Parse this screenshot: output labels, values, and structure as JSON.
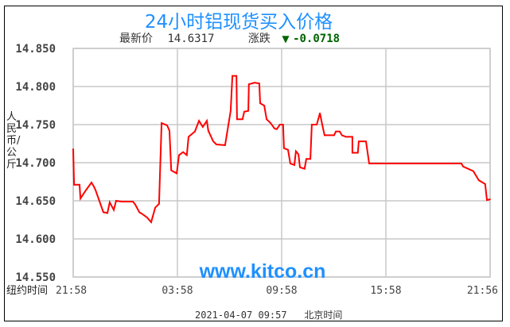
{
  "header": {
    "title": "24小时铝现货买入价格",
    "latest_label": "最新价",
    "latest_value": "14.6317",
    "change_label": "涨跌",
    "change_value": "-0.0718",
    "change_direction": "down",
    "change_color": "#006400"
  },
  "watermark": "www.kitco.cn",
  "footer": {
    "timestamp": "2021-04-07 09:57",
    "timezone_label": "北京时间"
  },
  "chart_data": {
    "type": "line",
    "title": "24小时铝现货买入价格",
    "ylabel": "人民币/公斤",
    "xlabel": "纽约时间",
    "ylim": [
      14.55,
      14.85
    ],
    "y_ticks": [
      "14.850",
      "14.800",
      "14.750",
      "14.700",
      "14.650",
      "14.600",
      "14.550"
    ],
    "x_ticks": [
      "21:58",
      "03:58",
      "09:58",
      "15:58",
      "21:56"
    ],
    "grid": true,
    "line_color": "#ff0000",
    "x": [
      "21:58",
      "22:01",
      "22:20",
      "22:23",
      "22:42",
      "23:01",
      "23:09",
      "23:15",
      "23:42",
      "23:56",
      "00:04",
      "00:18",
      "00:26",
      "00:45",
      "01:24",
      "01:32",
      "01:46",
      "01:59",
      "02:13",
      "02:27",
      "02:41",
      "02:54",
      "03:03",
      "03:22",
      "03:30",
      "03:36",
      "03:55",
      "04:03",
      "04:17",
      "04:30",
      "04:36",
      "04:58",
      "05:12",
      "05:25",
      "05:39",
      "05:44",
      "06:01",
      "06:12",
      "06:42",
      "07:01",
      "07:07",
      "07:21",
      "07:23",
      "07:42",
      "07:48",
      "08:02",
      "08:04",
      "08:24",
      "08:40",
      "08:43",
      "08:57",
      "09:05",
      "09:19",
      "09:32",
      "09:40",
      "09:51",
      "10:02",
      "10:05",
      "10:19",
      "10:27",
      "10:41",
      "10:46",
      "10:55",
      "11:00",
      "11:16",
      "11:22",
      "11:36",
      "11:41",
      "11:58",
      "12:09",
      "12:17",
      "12:25",
      "12:58",
      "13:04",
      "13:17",
      "13:25",
      "13:39",
      "14:01",
      "14:01",
      "14:20",
      "14:23",
      "14:48",
      "14:59",
      "20:17",
      "20:23",
      "20:58",
      "21:17",
      "21:39",
      "21:45",
      "21:56"
    ],
    "y": [
      14.718,
      14.671,
      14.671,
      14.653,
      14.664,
      14.674,
      14.669,
      14.664,
      14.635,
      14.634,
      14.648,
      14.638,
      14.65,
      14.649,
      14.649,
      14.645,
      14.635,
      14.632,
      14.628,
      14.622,
      14.641,
      14.646,
      14.752,
      14.749,
      14.742,
      14.69,
      14.686,
      14.71,
      14.714,
      14.71,
      14.734,
      14.741,
      14.755,
      14.747,
      14.755,
      14.742,
      14.728,
      14.724,
      14.723,
      14.768,
      14.814,
      14.814,
      14.757,
      14.757,
      14.767,
      14.768,
      14.803,
      14.805,
      14.804,
      14.778,
      14.775,
      14.757,
      14.752,
      14.745,
      14.744,
      14.75,
      14.75,
      14.719,
      14.717,
      14.699,
      14.697,
      14.715,
      14.711,
      14.694,
      14.692,
      14.705,
      14.705,
      14.75,
      14.75,
      14.765,
      14.75,
      14.736,
      14.736,
      14.741,
      14.741,
      14.736,
      14.734,
      14.734,
      14.713,
      14.713,
      14.728,
      14.728,
      14.699,
      14.699,
      14.695,
      14.689,
      14.677,
      14.672,
      14.651,
      14.652
    ]
  }
}
